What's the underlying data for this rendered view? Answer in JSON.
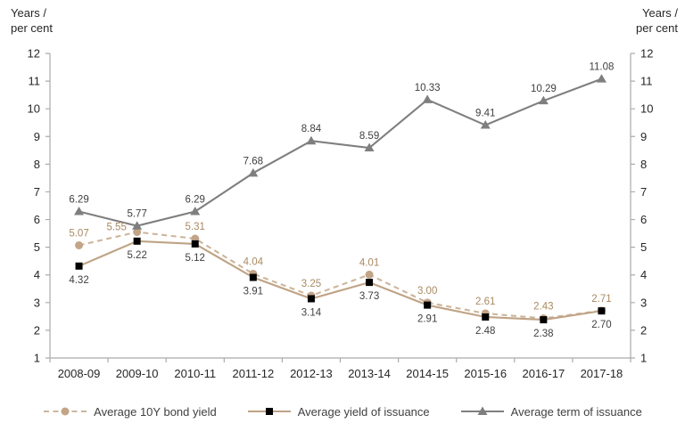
{
  "axis_title": {
    "line1": "Years /",
    "line2": "per cent"
  },
  "chart_data": {
    "type": "line",
    "title": "",
    "xlabel": "",
    "ylabel": "Years / per cent",
    "ylim": [
      1,
      12
    ],
    "yticks": [
      1,
      2,
      3,
      4,
      5,
      6,
      7,
      8,
      9,
      10,
      11,
      12
    ],
    "grid": false,
    "legend_position": "bottom",
    "dual_axis": true,
    "axis_color": "#ABABAB",
    "categories": [
      "2008-09",
      "2009-10",
      "2010-11",
      "2011-12",
      "2012-13",
      "2013-14",
      "2014-15",
      "2015-16",
      "2016-17",
      "2017-18"
    ],
    "series": [
      {
        "name": "Average 10Y bond yield",
        "values": [
          5.07,
          5.55,
          5.31,
          4.04,
          3.25,
          4.01,
          3.0,
          2.61,
          2.43,
          2.71
        ],
        "color": "#CDB59C",
        "marker": "circle",
        "marker_color": "#C2A487",
        "dashed": true,
        "label_color": "#A98A62",
        "label_position": "above"
      },
      {
        "name": "Average yield of issuance",
        "values": [
          4.32,
          5.22,
          5.12,
          3.91,
          3.14,
          3.73,
          2.91,
          2.48,
          2.38,
          2.7
        ],
        "color": "#BFA385",
        "marker": "square",
        "marker_color": "#000000",
        "dashed": false,
        "label_color": "#404040",
        "label_position": "below"
      },
      {
        "name": "Average term of issuance",
        "values": [
          6.29,
          5.77,
          6.29,
          7.68,
          8.84,
          8.59,
          10.33,
          9.41,
          10.29,
          11.08
        ],
        "color": "#7F7F7F",
        "marker": "triangle",
        "marker_color": "#7F7F7F",
        "dashed": false,
        "label_color": "#404040",
        "label_position": "above"
      }
    ]
  }
}
